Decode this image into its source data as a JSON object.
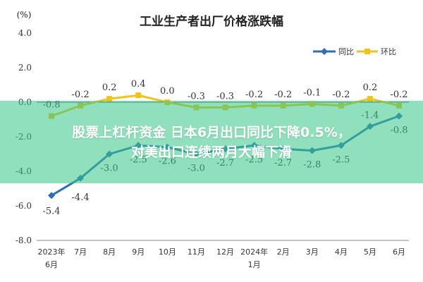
{
  "chart_data": {
    "type": "line",
    "title": "工业生产者出厂价格涨跌幅",
    "unit_label": "(%)",
    "categories": [
      [
        "2023年",
        "6月"
      ],
      [
        "7月"
      ],
      [
        "8月"
      ],
      [
        "9月"
      ],
      [
        "10月"
      ],
      [
        "11月"
      ],
      [
        "12月"
      ],
      [
        "2024年",
        "1月"
      ],
      [
        "2月"
      ],
      [
        "3月"
      ],
      [
        "4月"
      ],
      [
        "5月"
      ],
      [
        "6月"
      ]
    ],
    "yticks": [
      "4.0",
      "2.0",
      "0.0",
      "-2.0",
      "-4.0",
      "-6.0",
      "-8.0"
    ],
    "ylim": [
      -8.0,
      4.0
    ],
    "series": [
      {
        "name": "同比",
        "color": "#2f6fb5",
        "marker": "diamond",
        "values": [
          -5.4,
          -4.4,
          -3.0,
          -2.5,
          -2.6,
          -3.0,
          -2.7,
          -2.5,
          -2.7,
          -2.8,
          -2.5,
          -1.4,
          -0.8
        ],
        "labels": [
          "-5.4",
          "-4.4",
          "-3.0",
          "-2.5",
          "-2.6",
          "-3.0",
          "-2.7",
          "-2.5",
          "-2.7",
          "-2.8",
          "-2.5",
          "-1.4",
          "-0.8"
        ]
      },
      {
        "name": "环比",
        "color": "#f2c21b",
        "marker": "square",
        "values": [
          -0.8,
          -0.2,
          0.2,
          0.4,
          0.0,
          -0.3,
          -0.3,
          -0.2,
          -0.2,
          -0.1,
          -0.2,
          0.2,
          -0.2
        ],
        "labels": [
          "-0.8",
          "-0.2",
          "0.2",
          "0.4",
          "0.0",
          "-0.3",
          "-0.3",
          "-0.2",
          "-0.2",
          "-0.1",
          "-0.2",
          "0.2",
          "-0.2"
        ]
      }
    ],
    "legend": "top-right",
    "grid": false
  },
  "overlay": {
    "line1": "股票上杠杆资金 日本6月出口同比下降0.5%，",
    "line2": "对美出口连续两月大幅下滑"
  }
}
